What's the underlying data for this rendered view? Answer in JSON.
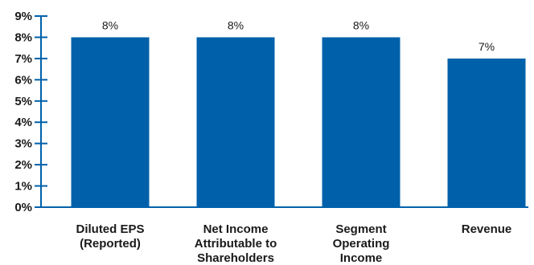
{
  "chart_data": {
    "type": "bar",
    "categories": [
      [
        "Diluted EPS",
        "(Reported)"
      ],
      [
        "Net Income",
        "Attributable to",
        "Shareholders"
      ],
      [
        "Segment",
        "Operating",
        "Income"
      ],
      [
        "Revenue"
      ]
    ],
    "values": [
      8,
      8,
      8,
      7
    ],
    "data_labels": [
      "8%",
      "8%",
      "8%",
      "7%"
    ],
    "y_ticks": [
      {
        "value": 0,
        "label": "0%"
      },
      {
        "value": 1,
        "label": "1%"
      },
      {
        "value": 2,
        "label": "2%"
      },
      {
        "value": 3,
        "label": "3%"
      },
      {
        "value": 4,
        "label": "4%"
      },
      {
        "value": 5,
        "label": "5%"
      },
      {
        "value": 6,
        "label": "6%"
      },
      {
        "value": 7,
        "label": "7%"
      },
      {
        "value": 8,
        "label": "8%"
      },
      {
        "value": 9,
        "label": "9%"
      }
    ],
    "ylim": [
      0,
      9
    ],
    "grid": false,
    "colors": {
      "bar": "#0061aa",
      "axis": "#0061aa",
      "text": "#1a1a1a"
    }
  }
}
